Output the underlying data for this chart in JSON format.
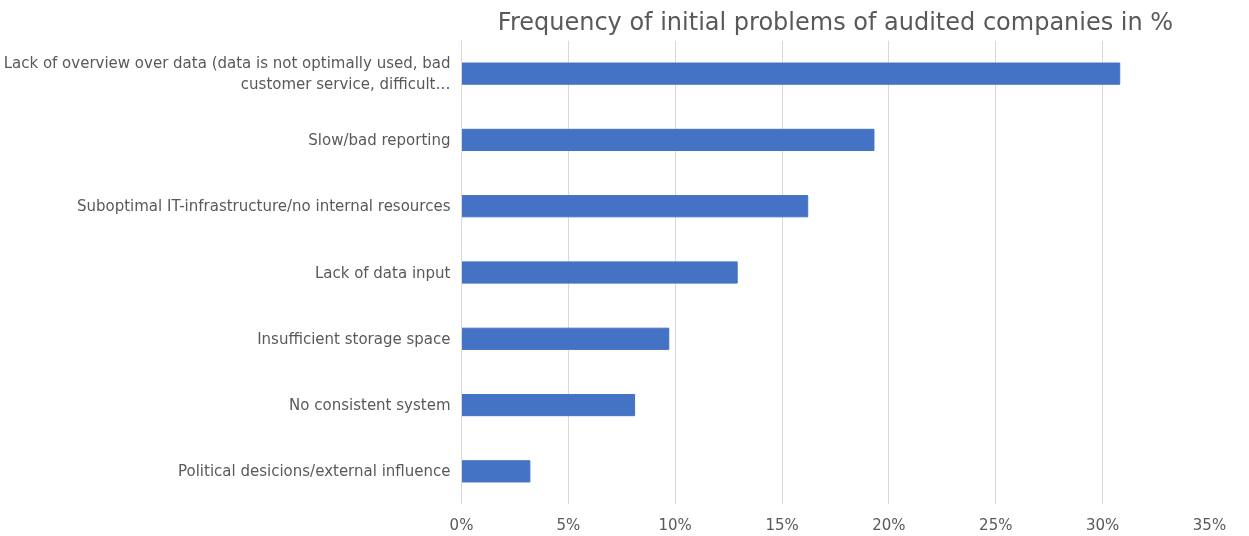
{
  "chart_data": {
    "type": "bar",
    "orientation": "horizontal",
    "title": "Frequency of initial problems of audited companies in %",
    "categories": [
      "Lack of overview over data (data is not optimally used, bad customer service, difficult…",
      "Slow/bad reporting",
      "Suboptimal IT-infrastructure/no internal resources",
      "Lack of data input",
      "Insufficient storage space",
      "No consistent system",
      "Political desicions/external influence"
    ],
    "values": [
      30.8,
      19.3,
      16.2,
      12.9,
      9.7,
      8.1,
      3.2
    ],
    "color": "#4472c4",
    "xlim": [
      0,
      35
    ],
    "xticks": [
      {
        "value": 0,
        "label": "0%"
      },
      {
        "value": 5,
        "label": "5%"
      },
      {
        "value": 10,
        "label": "10%"
      },
      {
        "value": 15,
        "label": "15%"
      },
      {
        "value": 20,
        "label": "20%"
      },
      {
        "value": 25,
        "label": "25%"
      },
      {
        "value": 30,
        "label": "30%"
      },
      {
        "value": 35,
        "label": "35%"
      }
    ],
    "grid": "x"
  }
}
